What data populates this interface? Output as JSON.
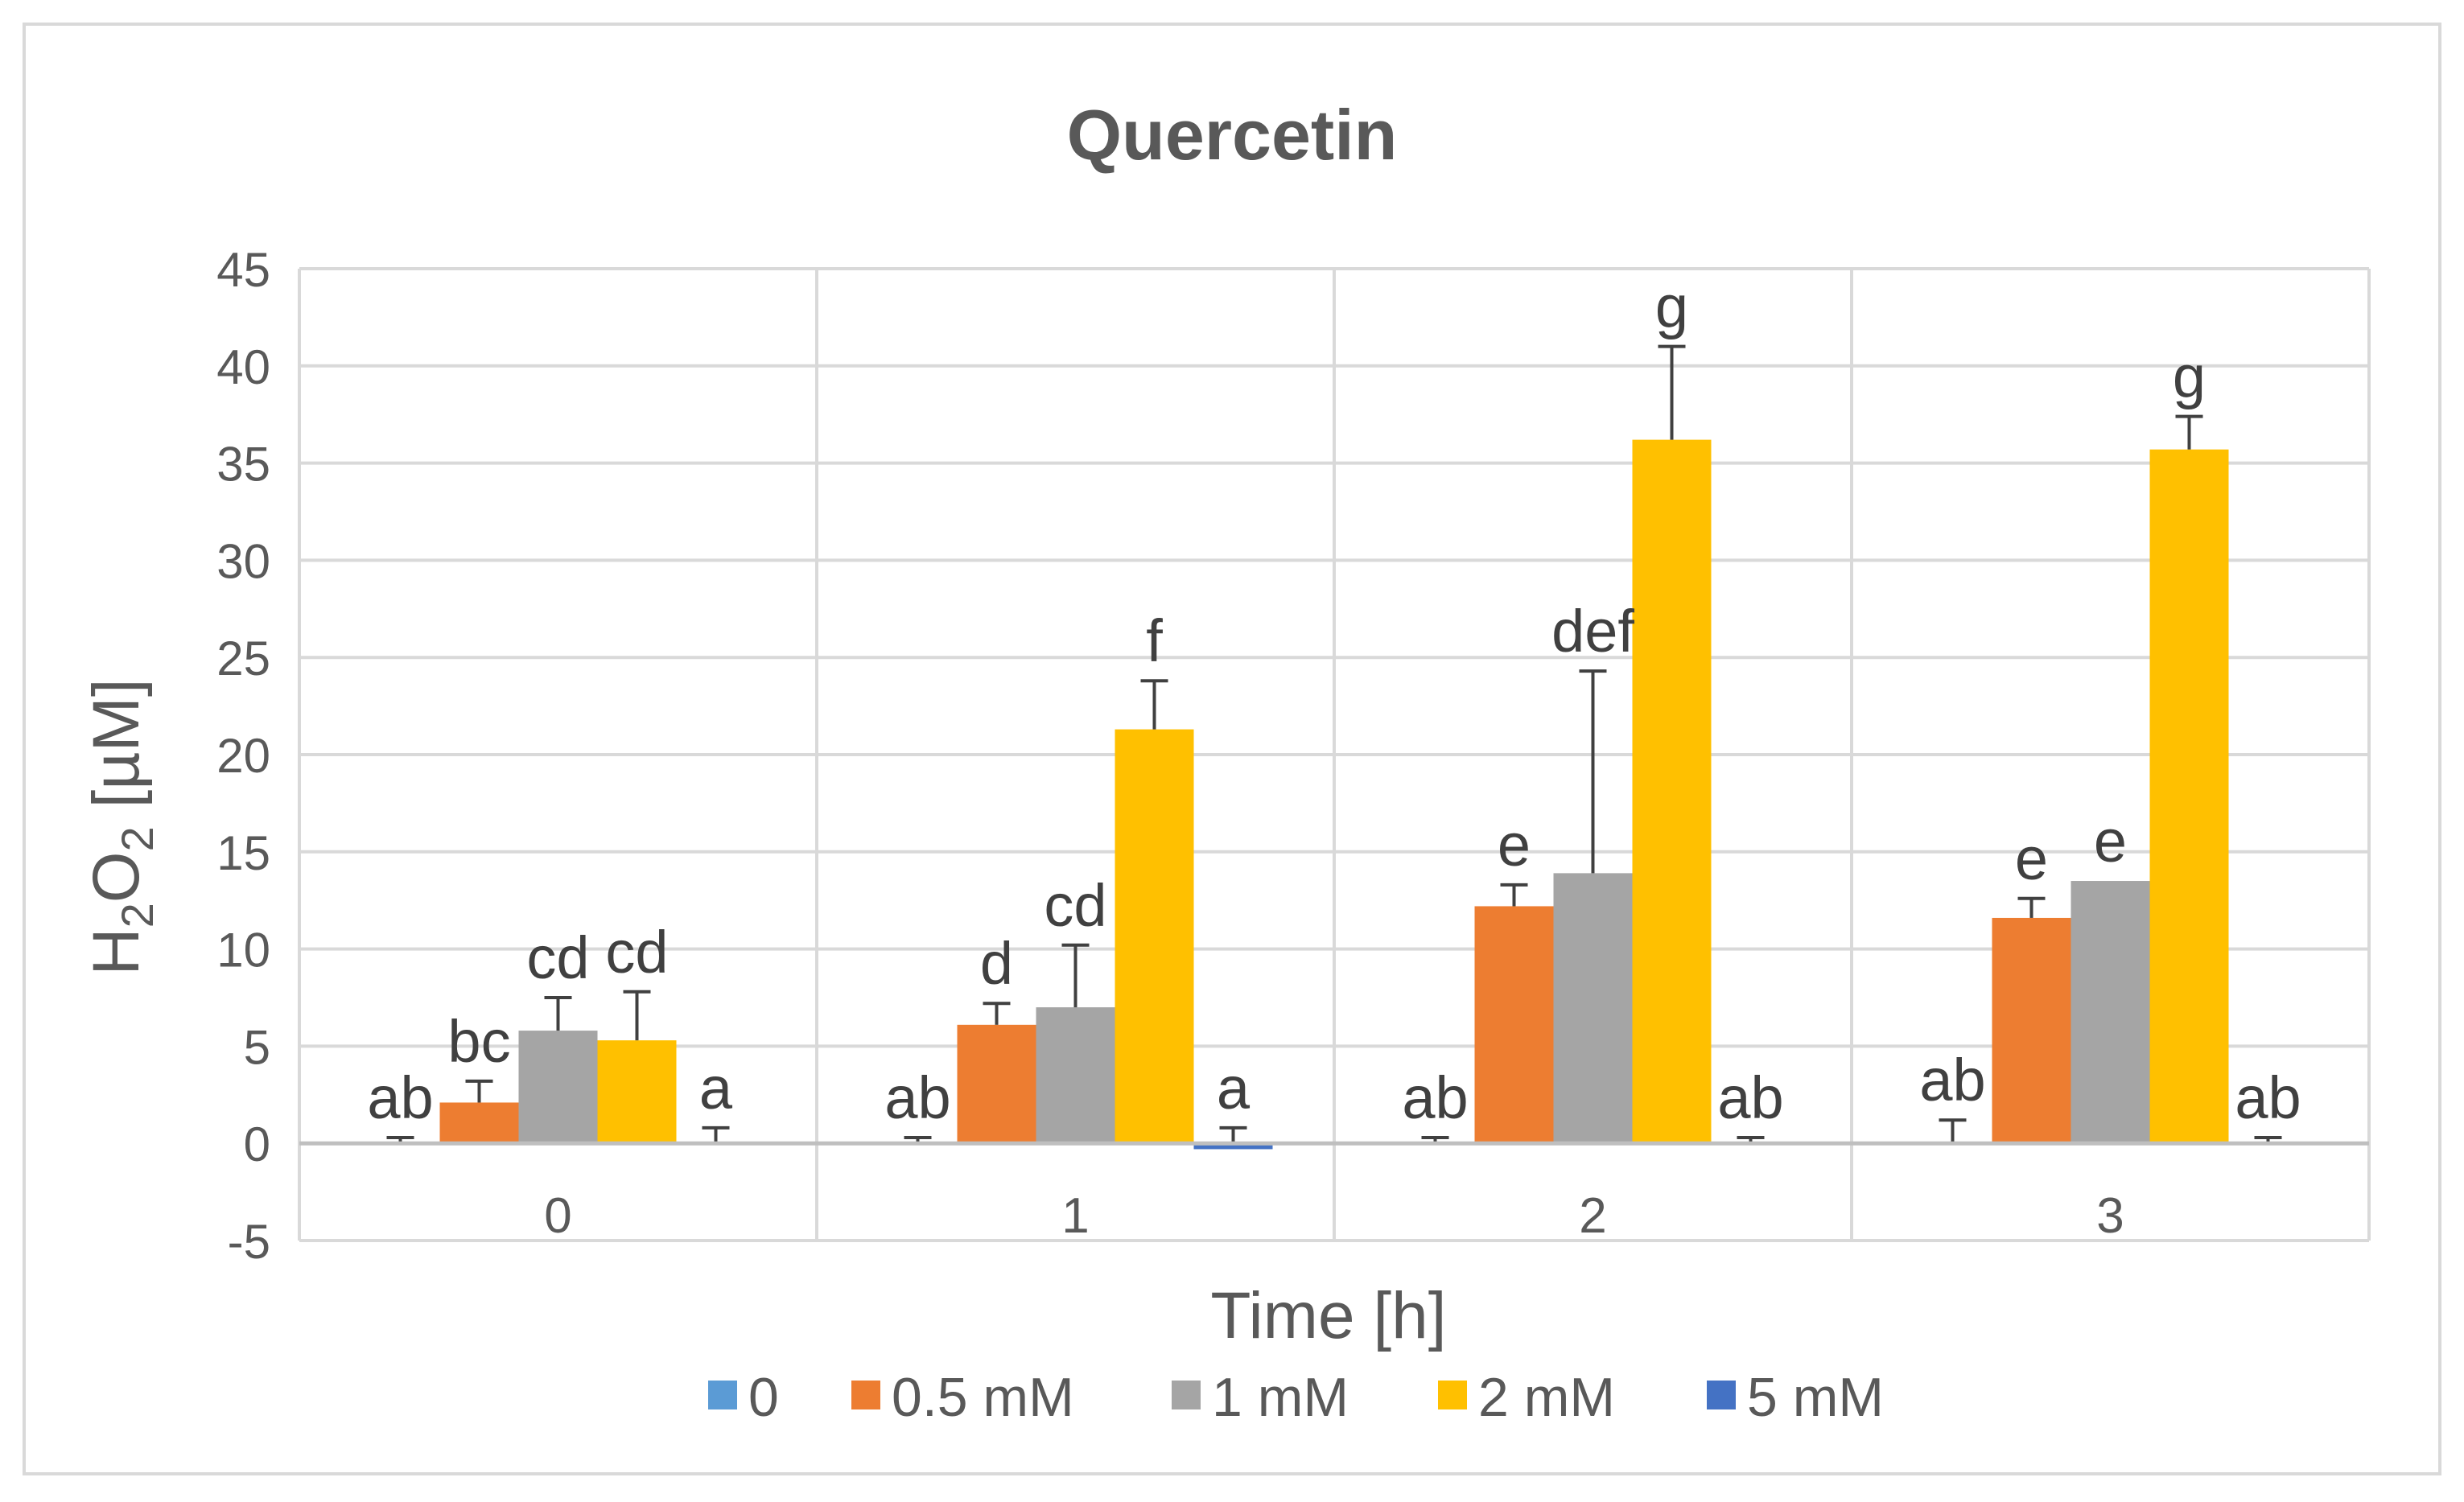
{
  "chart_data": {
    "type": "bar",
    "title": "Quercetin",
    "xlabel": "Time [h]",
    "ylabel": "H2O2 [µM]",
    "ylabel_parts": {
      "h": "H",
      "sub1": "2",
      "o": "O",
      "sub2": "2",
      "unit": " [µM]"
    },
    "categories": [
      "0",
      "1",
      "2",
      "3"
    ],
    "ylim": [
      -5,
      45
    ],
    "yticks": [
      -5,
      0,
      5,
      10,
      15,
      20,
      25,
      30,
      35,
      40,
      45
    ],
    "grid": true,
    "legend_position": "bottom",
    "series": [
      {
        "name": "0",
        "color": "#5B9BD5",
        "values": [
          0,
          0,
          0,
          0
        ],
        "errors": [
          0.3,
          0.3,
          0.3,
          1.2
        ],
        "letters": [
          "ab",
          "ab",
          "ab",
          "ab"
        ]
      },
      {
        "name": "0.5 mM",
        "color": "#ED7D31",
        "values": [
          2.1,
          6.1,
          12.2,
          11.6
        ],
        "errors": [
          1.1,
          1.1,
          1.1,
          1.0
        ],
        "letters": [
          "bc",
          "d",
          "e",
          "e"
        ]
      },
      {
        "name": "1 mM",
        "color": "#A5A5A5",
        "values": [
          5.8,
          7.0,
          13.9,
          13.5
        ],
        "errors": [
          1.7,
          3.2,
          10.4,
          0
        ],
        "letters": [
          "cd",
          "cd",
          "def",
          "e"
        ]
      },
      {
        "name": "2 mM",
        "color": "#FFC000",
        "values": [
          5.3,
          21.3,
          36.2,
          35.7
        ],
        "errors": [
          2.5,
          2.5,
          4.8,
          1.7
        ],
        "letters": [
          "cd",
          "f",
          "g",
          "g"
        ]
      },
      {
        "name": "5 mM",
        "color": "#4472C4",
        "values": [
          0,
          -0.3,
          0,
          0
        ],
        "errors": [
          0.8,
          0.8,
          0.3,
          0.3
        ],
        "letters": [
          "a",
          "a",
          "ab",
          "ab"
        ]
      }
    ]
  }
}
